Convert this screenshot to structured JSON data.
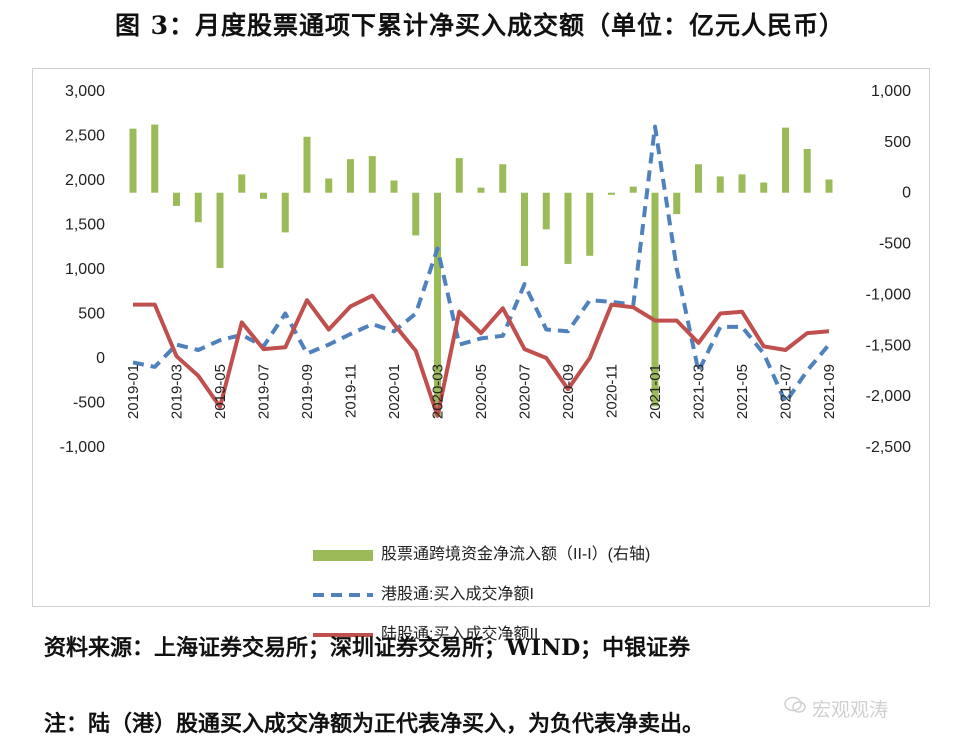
{
  "title": "图 3：月度股票通项下累计净买入成交额（单位：亿元人民币）",
  "source": "资料来源：上海证券交易所；深圳证券交易所；WIND；中银证券",
  "note": "注：陆（港）股通买入成交净额为正代表净买入，为负代表净卖出。",
  "watermark": "宏观观涛",
  "chart_data": {
    "type": "bar+line",
    "x": [
      "2019-01",
      "2019-02",
      "2019-03",
      "2019-04",
      "2019-05",
      "2019-06",
      "2019-07",
      "2019-08",
      "2019-09",
      "2019-10",
      "2019-11",
      "2019-12",
      "2020-01",
      "2020-02",
      "2020-03",
      "2020-04",
      "2020-05",
      "2020-06",
      "2020-07",
      "2020-08",
      "2020-09",
      "2020-10",
      "2020-11",
      "2020-12",
      "2021-01",
      "2021-02",
      "2021-03",
      "2021-04",
      "2021-05",
      "2021-06",
      "2021-07",
      "2021-08",
      "2021-09"
    ],
    "x_tick_labels": [
      "2019-01",
      "2019-03",
      "2019-05",
      "2019-07",
      "2019-09",
      "2019-11",
      "2020-01",
      "2020-03",
      "2020-05",
      "2020-07",
      "2020-09",
      "2020-11",
      "2021-01",
      "2021-03",
      "2021-05",
      "2021-07",
      "2021-09"
    ],
    "y_left": {
      "ylim": [
        -1000,
        3000
      ],
      "ticks": [
        3000,
        2500,
        2000,
        1500,
        1000,
        500,
        0,
        -500,
        -1000
      ],
      "tick_labels": [
        "3,000",
        "2,500",
        "2,000",
        "1,500",
        "1,000",
        "500",
        "0",
        "-500",
        "-1,000"
      ]
    },
    "y_right": {
      "ylim": [
        -2500,
        1000
      ],
      "ticks": [
        1000,
        500,
        0,
        -500,
        -1000,
        -1500,
        -2000,
        -2500
      ],
      "tick_labels": [
        "1,000",
        "500",
        "0",
        "-500",
        "-1,000",
        "-1,500",
        "-2,000",
        "-2,500"
      ]
    },
    "series": [
      {
        "name": "股票通跨境资金净流入额（II-I）(右轴)",
        "type": "bar",
        "axis": "right",
        "color": "#9bbb59",
        "values": [
          630,
          670,
          -130,
          -290,
          -740,
          180,
          -60,
          -390,
          550,
          140,
          330,
          360,
          120,
          -420,
          -2200,
          340,
          50,
          280,
          -720,
          -360,
          -700,
          -620,
          -20,
          60,
          -2100,
          -210,
          280,
          160,
          180,
          100,
          640,
          430,
          130
        ]
      },
      {
        "name": "港股通:买入成交净额I",
        "type": "line",
        "axis": "left",
        "dash": true,
        "color": "#4f81bd",
        "values": [
          -50,
          -100,
          150,
          90,
          200,
          260,
          130,
          500,
          50,
          150,
          270,
          380,
          300,
          500,
          1230,
          150,
          220,
          250,
          830,
          320,
          300,
          650,
          630,
          600,
          2600,
          1000,
          -150,
          350,
          350,
          50,
          -500,
          -140,
          150
        ]
      },
      {
        "name": "陆股通:买入成交净额II",
        "type": "line",
        "axis": "left",
        "dash": false,
        "color": "#c0504d",
        "values": [
          600,
          600,
          20,
          -200,
          -550,
          400,
          100,
          120,
          650,
          320,
          580,
          700,
          380,
          80,
          -650,
          520,
          280,
          560,
          100,
          0,
          -350,
          0,
          600,
          570,
          420,
          420,
          170,
          500,
          520,
          130,
          90,
          280,
          300
        ]
      }
    ]
  }
}
